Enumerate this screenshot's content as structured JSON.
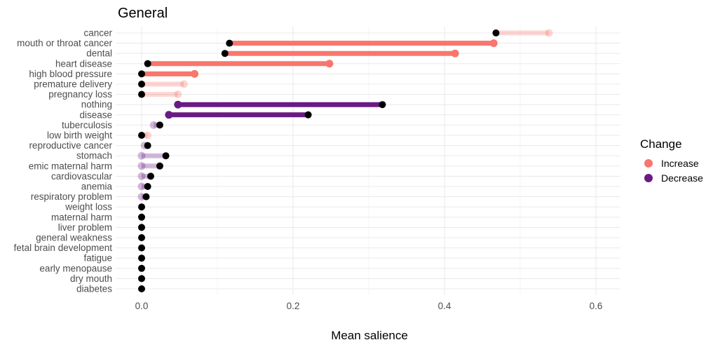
{
  "chart_data": {
    "type": "dumbbell",
    "title": "General",
    "xlabel": "Mean salience",
    "ylabel": "",
    "xlim": [
      -0.04,
      0.63
    ],
    "xticks": [
      0.0,
      0.2,
      0.4,
      0.6
    ],
    "xtick_labels": [
      "0.0",
      "0.2",
      "0.4",
      "0.6"
    ],
    "grid": true,
    "legend": {
      "title": "Change",
      "position": "right",
      "entries": [
        {
          "label": "Increase",
          "color": "#F8766D"
        },
        {
          "label": "Decrease",
          "color": "#6A1B82"
        }
      ]
    },
    "colors": {
      "increase": "#F8766D",
      "decrease": "#6A1B82",
      "endpoint": "#000000",
      "grid": "#EBEBEB"
    },
    "note": "Each row: black point = start value, colored point = end value; faded segments indicate non-significant change",
    "rows": [
      {
        "category": "cancer",
        "start": 0.468,
        "end": 0.538,
        "change": "Increase",
        "faded": true
      },
      {
        "category": "mouth or throat cancer",
        "start": 0.116,
        "end": 0.465,
        "change": "Increase",
        "faded": false
      },
      {
        "category": "dental",
        "start": 0.11,
        "end": 0.414,
        "change": "Increase",
        "faded": false
      },
      {
        "category": "heart disease",
        "start": 0.008,
        "end": 0.248,
        "change": "Increase",
        "faded": false
      },
      {
        "category": "high blood pressure",
        "start": 0.0,
        "end": 0.07,
        "change": "Increase",
        "faded": false
      },
      {
        "category": "premature delivery",
        "start": 0.0,
        "end": 0.056,
        "change": "Increase",
        "faded": true
      },
      {
        "category": "pregnancy loss",
        "start": 0.0,
        "end": 0.048,
        "change": "Increase",
        "faded": true
      },
      {
        "category": "nothing",
        "start": 0.318,
        "end": 0.048,
        "change": "Decrease",
        "faded": false
      },
      {
        "category": "disease",
        "start": 0.22,
        "end": 0.036,
        "change": "Decrease",
        "faded": false
      },
      {
        "category": "tuberculosis",
        "start": 0.024,
        "end": 0.016,
        "change": "Decrease",
        "faded": true
      },
      {
        "category": "low birth weight",
        "start": 0.0,
        "end": 0.008,
        "change": "Increase",
        "faded": true
      },
      {
        "category": "reproductive cancer",
        "start": 0.008,
        "end": 0.004,
        "change": "Decrease",
        "faded": true
      },
      {
        "category": "stomach",
        "start": 0.032,
        "end": 0.0,
        "change": "Decrease",
        "faded": true
      },
      {
        "category": "emic maternal harm",
        "start": 0.024,
        "end": 0.0,
        "change": "Decrease",
        "faded": true
      },
      {
        "category": "cardiovascular",
        "start": 0.012,
        "end": 0.0,
        "change": "Decrease",
        "faded": true
      },
      {
        "category": "anemia",
        "start": 0.008,
        "end": 0.0,
        "change": "Decrease",
        "faded": true
      },
      {
        "category": "respiratory problem",
        "start": 0.006,
        "end": 0.0,
        "change": "Decrease",
        "faded": true
      },
      {
        "category": "weight loss",
        "start": 0.0,
        "end": 0.0,
        "change": "None",
        "faded": true
      },
      {
        "category": "maternal harm",
        "start": 0.0,
        "end": 0.0,
        "change": "None",
        "faded": true
      },
      {
        "category": "liver problem",
        "start": 0.0,
        "end": 0.0,
        "change": "None",
        "faded": true
      },
      {
        "category": "general weakness",
        "start": 0.0,
        "end": 0.0,
        "change": "None",
        "faded": true
      },
      {
        "category": "fetal brain development",
        "start": 0.0,
        "end": 0.0,
        "change": "None",
        "faded": true
      },
      {
        "category": "fatigue",
        "start": 0.0,
        "end": 0.0,
        "change": "None",
        "faded": true
      },
      {
        "category": "early menopause",
        "start": 0.0,
        "end": 0.0,
        "change": "None",
        "faded": true
      },
      {
        "category": "dry mouth",
        "start": 0.0,
        "end": 0.0,
        "change": "None",
        "faded": true
      },
      {
        "category": "diabetes",
        "start": 0.0,
        "end": 0.0,
        "change": "None",
        "faded": true
      }
    ]
  }
}
